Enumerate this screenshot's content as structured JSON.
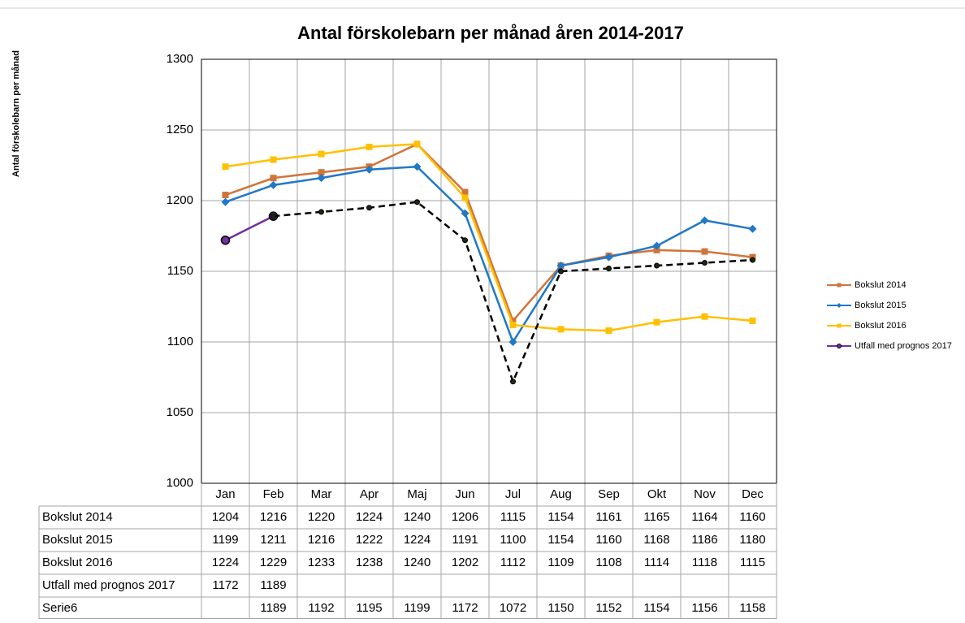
{
  "chart_data": {
    "type": "line",
    "title": "Antal förskolebarn per månad åren 2014-2017",
    "y_label": "Antal förskolebarn per månad",
    "categories": [
      "Jan",
      "Feb",
      "Mar",
      "Apr",
      "Maj",
      "Jun",
      "Jul",
      "Aug",
      "Sep",
      "Okt",
      "Nov",
      "Dec"
    ],
    "series": [
      {
        "name": "Bokslut 2014",
        "color": "#d0743a",
        "marker": "square",
        "dash": false,
        "in_legend": true,
        "values": [
          1204,
          1216,
          1220,
          1224,
          1240,
          1206,
          1115,
          1154,
          1161,
          1165,
          1164,
          1160
        ]
      },
      {
        "name": "Bokslut 2015",
        "color": "#1f78c8",
        "marker": "diamond",
        "dash": false,
        "in_legend": true,
        "values": [
          1199,
          1211,
          1216,
          1222,
          1224,
          1191,
          1100,
          1154,
          1160,
          1168,
          1186,
          1180
        ]
      },
      {
        "name": "Bokslut 2016",
        "color": "#ffc000",
        "marker": "square",
        "dash": false,
        "in_legend": true,
        "values": [
          1224,
          1229,
          1233,
          1238,
          1240,
          1202,
          1112,
          1109,
          1108,
          1114,
          1118,
          1115
        ]
      },
      {
        "name": "Utfall med prognos 2017",
        "color": "#7030a0",
        "marker": "circle",
        "dash": false,
        "in_legend": true,
        "values": [
          1172,
          1189,
          null,
          null,
          null,
          null,
          null,
          null,
          null,
          null,
          null,
          null
        ]
      },
      {
        "name": "Serie6",
        "color": "#000000",
        "marker": "dot",
        "dash": true,
        "in_legend": false,
        "values": [
          null,
          1189,
          1192,
          1195,
          1199,
          1172,
          1072,
          1150,
          1152,
          1154,
          1156,
          1158
        ]
      }
    ],
    "ylim": [
      1000,
      1300
    ],
    "yticks": [
      1000,
      1050,
      1100,
      1150,
      1200,
      1250,
      1300
    ],
    "grid": true,
    "legend": "right",
    "data_table": true
  }
}
